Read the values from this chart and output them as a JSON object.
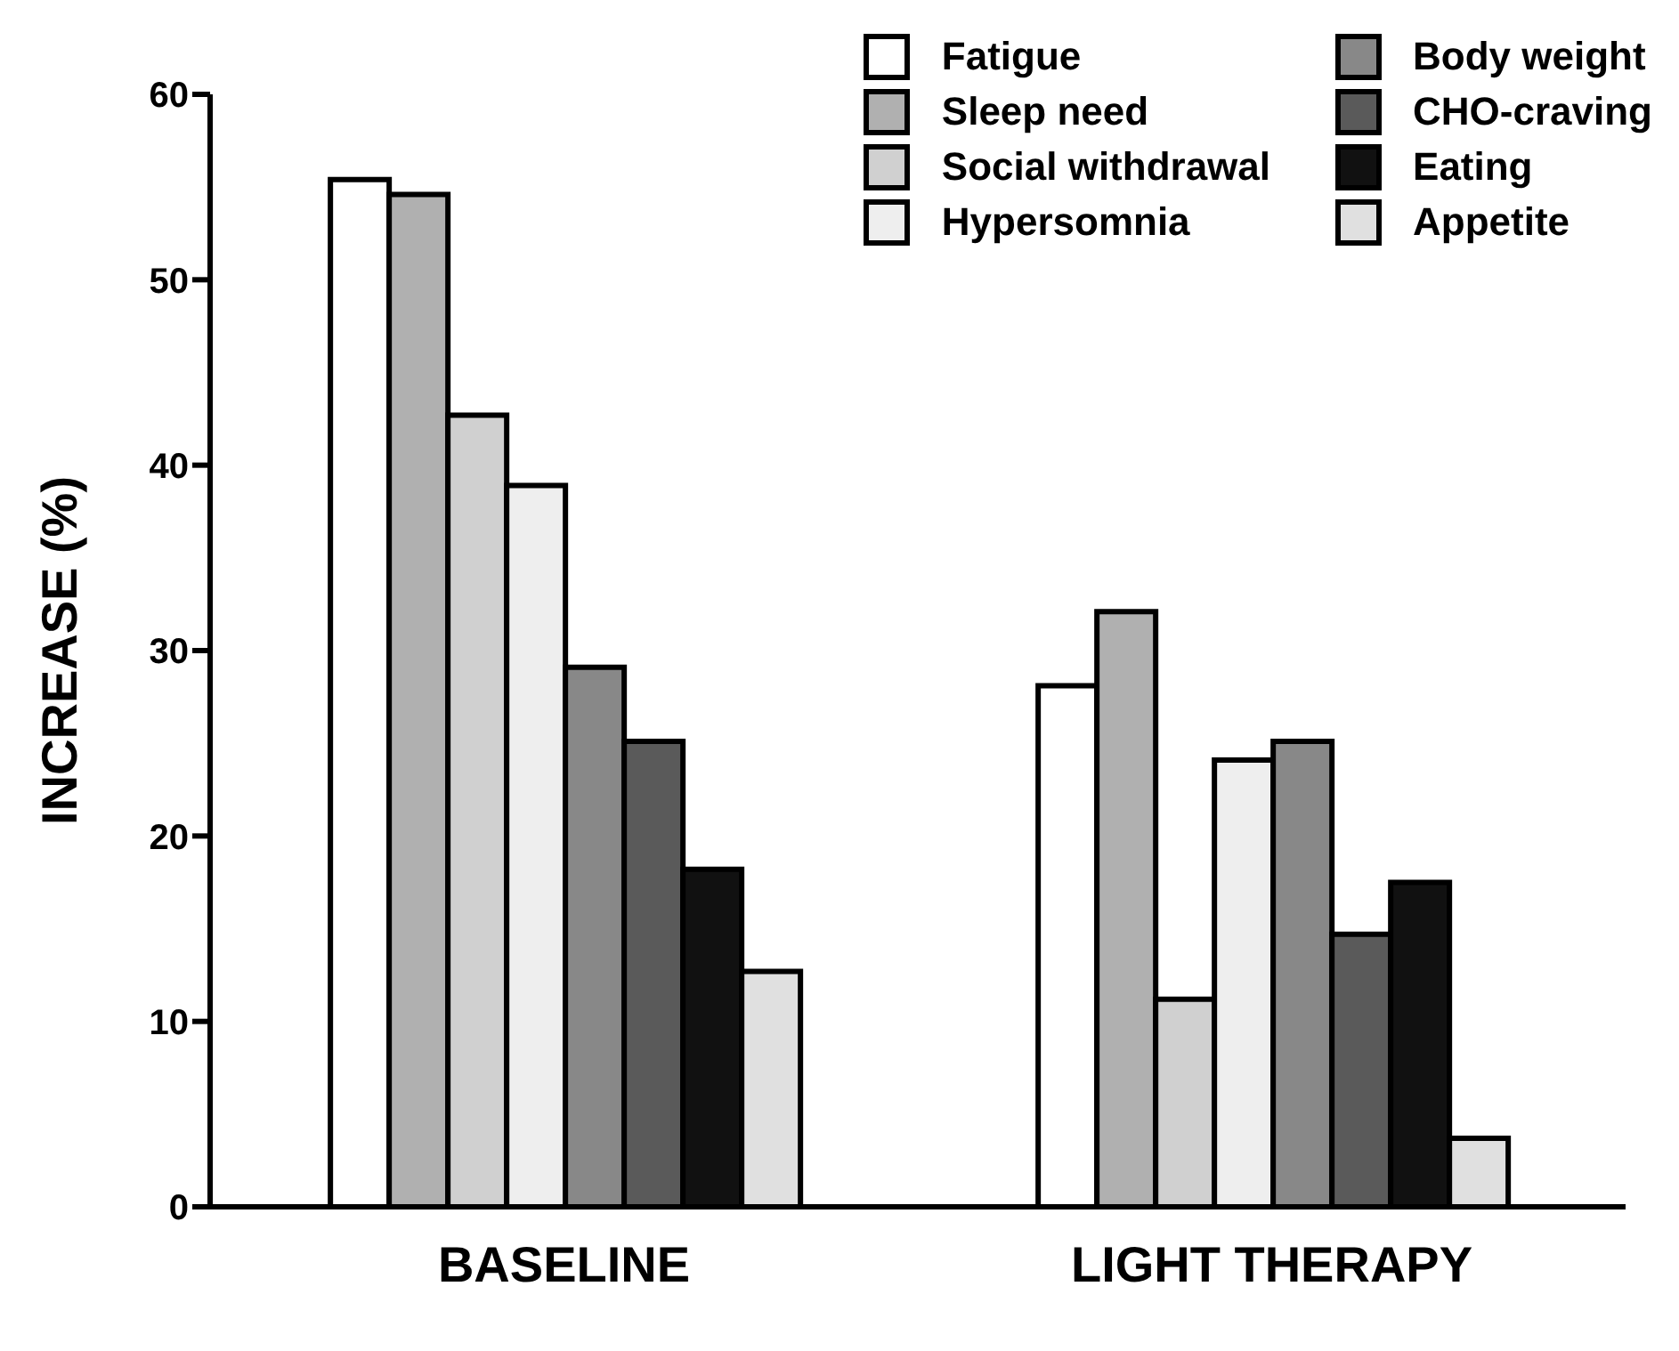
{
  "chart_data": {
    "type": "bar",
    "ylabel": "INCREASE (%)",
    "categories": [
      "BASELINE",
      "LIGHT THERAPY"
    ],
    "series": [
      {
        "name": "Fatigue",
        "color": "#ffffff",
        "values": [
          55.4,
          28.1
        ]
      },
      {
        "name": "Sleep need",
        "color": "#b0b0b0",
        "values": [
          54.6,
          32.1
        ]
      },
      {
        "name": "Social withdrawal",
        "color": "#d0d0d0",
        "values": [
          42.7,
          11.2
        ]
      },
      {
        "name": "Hypersomnia",
        "color": "#eeeeee",
        "values": [
          38.9,
          24.1
        ]
      },
      {
        "name": "Body weight",
        "color": "#888888",
        "values": [
          29.1,
          25.1
        ]
      },
      {
        "name": "CHO-craving",
        "color": "#5a5a5a",
        "values": [
          25.1,
          14.7
        ]
      },
      {
        "name": "Eating",
        "color": "#111111",
        "values": [
          18.2,
          17.5
        ]
      },
      {
        "name": "Appetite",
        "color": "#e0e0e0",
        "values": [
          12.7,
          3.7
        ]
      }
    ],
    "ylim": [
      0,
      60
    ],
    "yticks": [
      0,
      10,
      20,
      30,
      40,
      50,
      60
    ],
    "grid": false,
    "legend": "top right"
  }
}
